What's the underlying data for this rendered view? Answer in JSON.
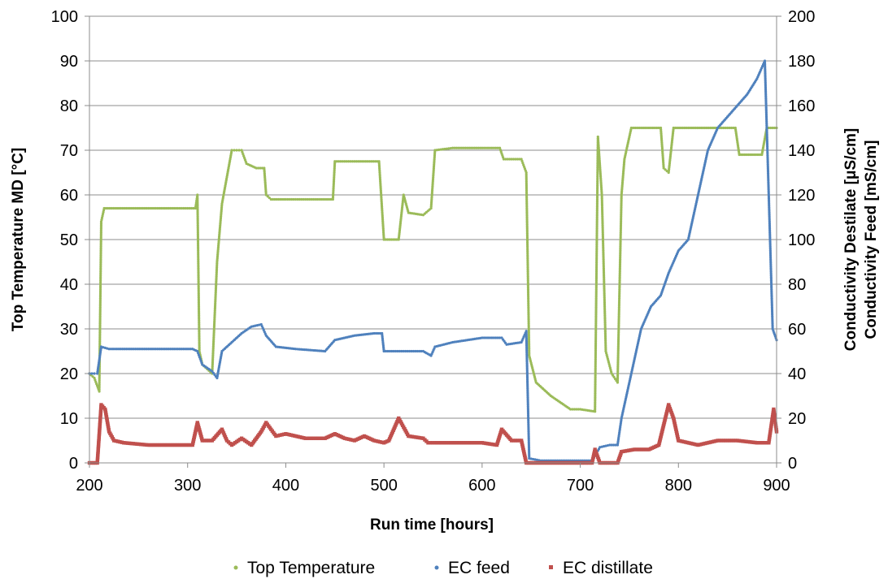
{
  "chart_data": {
    "type": "scatter",
    "xlabel": "Run time [hours]",
    "ylabel_left": "Top Temperature MD  [°C]",
    "ylabel_right_1": "Conductivity Destilate [μS/cm]",
    "ylabel_right_2": "Conductivity Feed [mS/cm]",
    "xlim": [
      200,
      900
    ],
    "ylim_left": [
      0,
      100
    ],
    "ylim_right": [
      0,
      200
    ],
    "x_ticks": [
      200,
      300,
      400,
      500,
      600,
      700,
      800,
      900
    ],
    "y_left_ticks": [
      0,
      10,
      20,
      30,
      40,
      50,
      60,
      70,
      80,
      90,
      100
    ],
    "y_right_ticks": [
      0,
      20,
      40,
      60,
      80,
      100,
      120,
      140,
      160,
      180,
      200
    ],
    "grid": true,
    "legend_position": "bottom",
    "series": [
      {
        "name": "Top Temperature",
        "axis": "left",
        "color": "#9BBB59",
        "marker": "dot",
        "points": [
          [
            200,
            20
          ],
          [
            205,
            19
          ],
          [
            210,
            16
          ],
          [
            212,
            54
          ],
          [
            215,
            57
          ],
          [
            230,
            57
          ],
          [
            260,
            57
          ],
          [
            290,
            57
          ],
          [
            308,
            57
          ],
          [
            310,
            60
          ],
          [
            312,
            25
          ],
          [
            315,
            22
          ],
          [
            320,
            21
          ],
          [
            325,
            20
          ],
          [
            330,
            45
          ],
          [
            335,
            58
          ],
          [
            345,
            70
          ],
          [
            350,
            70
          ],
          [
            355,
            70
          ],
          [
            360,
            67
          ],
          [
            370,
            66
          ],
          [
            378,
            66
          ],
          [
            380,
            60
          ],
          [
            385,
            59
          ],
          [
            400,
            59
          ],
          [
            420,
            59
          ],
          [
            440,
            59
          ],
          [
            448,
            59
          ],
          [
            450,
            67.5
          ],
          [
            470,
            67.5
          ],
          [
            495,
            67.5
          ],
          [
            500,
            50
          ],
          [
            515,
            50
          ],
          [
            520,
            60
          ],
          [
            525,
            56
          ],
          [
            540,
            55.5
          ],
          [
            548,
            57
          ],
          [
            552,
            70
          ],
          [
            570,
            70.5
          ],
          [
            600,
            70.5
          ],
          [
            618,
            70.5
          ],
          [
            622,
            68
          ],
          [
            640,
            68
          ],
          [
            645,
            65
          ],
          [
            648,
            24
          ],
          [
            655,
            18
          ],
          [
            670,
            15
          ],
          [
            690,
            12
          ],
          [
            700,
            12
          ],
          [
            715,
            11.5
          ],
          [
            718,
            73
          ],
          [
            722,
            60
          ],
          [
            726,
            25
          ],
          [
            732,
            20
          ],
          [
            738,
            18
          ],
          [
            742,
            60
          ],
          [
            745,
            68
          ],
          [
            752,
            75
          ],
          [
            770,
            75
          ],
          [
            782,
            75
          ],
          [
            785,
            66
          ],
          [
            790,
            65
          ],
          [
            795,
            75
          ],
          [
            810,
            75
          ],
          [
            840,
            75
          ],
          [
            858,
            75
          ],
          [
            862,
            69
          ],
          [
            875,
            69
          ],
          [
            885,
            69
          ],
          [
            890,
            75
          ],
          [
            900,
            75
          ]
        ]
      },
      {
        "name": "EC feed",
        "axis": "right",
        "color": "#4F81BD",
        "marker": "dot",
        "points": [
          [
            200,
            40
          ],
          [
            205,
            40
          ],
          [
            208,
            40
          ],
          [
            212,
            52
          ],
          [
            220,
            51
          ],
          [
            230,
            51
          ],
          [
            260,
            51
          ],
          [
            290,
            51
          ],
          [
            305,
            51
          ],
          [
            310,
            50
          ],
          [
            315,
            44
          ],
          [
            325,
            41
          ],
          [
            330,
            38
          ],
          [
            335,
            50
          ],
          [
            345,
            54
          ],
          [
            355,
            58
          ],
          [
            365,
            61
          ],
          [
            375,
            62
          ],
          [
            380,
            57
          ],
          [
            390,
            52
          ],
          [
            410,
            51
          ],
          [
            440,
            50
          ],
          [
            450,
            55
          ],
          [
            470,
            57
          ],
          [
            490,
            58
          ],
          [
            498,
            58
          ],
          [
            500,
            50
          ],
          [
            520,
            50
          ],
          [
            540,
            50
          ],
          [
            548,
            48
          ],
          [
            552,
            52
          ],
          [
            570,
            54
          ],
          [
            600,
            56
          ],
          [
            620,
            56
          ],
          [
            625,
            53
          ],
          [
            640,
            54
          ],
          [
            645,
            59
          ],
          [
            648,
            2
          ],
          [
            660,
            1
          ],
          [
            690,
            1
          ],
          [
            700,
            1
          ],
          [
            712,
            1
          ],
          [
            720,
            7
          ],
          [
            730,
            8
          ],
          [
            738,
            8
          ],
          [
            742,
            20
          ],
          [
            752,
            40
          ],
          [
            762,
            60
          ],
          [
            772,
            70
          ],
          [
            782,
            75
          ],
          [
            790,
            85
          ],
          [
            800,
            95
          ],
          [
            810,
            100
          ],
          [
            820,
            120
          ],
          [
            830,
            140
          ],
          [
            840,
            150
          ],
          [
            850,
            155
          ],
          [
            860,
            160
          ],
          [
            870,
            165
          ],
          [
            880,
            172
          ],
          [
            888,
            180
          ],
          [
            892,
            120
          ],
          [
            896,
            60
          ],
          [
            900,
            55
          ]
        ]
      },
      {
        "name": "EC distillate",
        "axis": "right",
        "color": "#C0504D",
        "marker": "dot",
        "points": [
          [
            200,
            0
          ],
          [
            208,
            0
          ],
          [
            212,
            26
          ],
          [
            216,
            24
          ],
          [
            220,
            14
          ],
          [
            225,
            10
          ],
          [
            235,
            9
          ],
          [
            260,
            8
          ],
          [
            290,
            8
          ],
          [
            305,
            8
          ],
          [
            310,
            18
          ],
          [
            315,
            10
          ],
          [
            325,
            10
          ],
          [
            335,
            15
          ],
          [
            340,
            10
          ],
          [
            345,
            8
          ],
          [
            355,
            11
          ],
          [
            365,
            8
          ],
          [
            375,
            14
          ],
          [
            380,
            18
          ],
          [
            385,
            15
          ],
          [
            390,
            12
          ],
          [
            400,
            13
          ],
          [
            420,
            11
          ],
          [
            440,
            11
          ],
          [
            450,
            13
          ],
          [
            460,
            11
          ],
          [
            470,
            10
          ],
          [
            480,
            12
          ],
          [
            490,
            10
          ],
          [
            500,
            9
          ],
          [
            505,
            10
          ],
          [
            515,
            20
          ],
          [
            520,
            16
          ],
          [
            525,
            12
          ],
          [
            540,
            11
          ],
          [
            545,
            9
          ],
          [
            552,
            9
          ],
          [
            570,
            9
          ],
          [
            600,
            9
          ],
          [
            615,
            8
          ],
          [
            620,
            15
          ],
          [
            630,
            10
          ],
          [
            640,
            10
          ],
          [
            645,
            0
          ],
          [
            660,
            0
          ],
          [
            700,
            0
          ],
          [
            712,
            0
          ],
          [
            715,
            6
          ],
          [
            720,
            0
          ],
          [
            738,
            0
          ],
          [
            742,
            5
          ],
          [
            755,
            6
          ],
          [
            770,
            6
          ],
          [
            780,
            8
          ],
          [
            790,
            26
          ],
          [
            795,
            20
          ],
          [
            800,
            10
          ],
          [
            820,
            8
          ],
          [
            840,
            10
          ],
          [
            860,
            10
          ],
          [
            880,
            9
          ],
          [
            892,
            9
          ],
          [
            897,
            24
          ],
          [
            900,
            14
          ]
        ]
      }
    ],
    "legend": [
      {
        "label": "Top Temperature",
        "color": "#9BBB59"
      },
      {
        "label": "EC feed",
        "color": "#4F81BD"
      },
      {
        "label": "EC distillate",
        "color": "#C0504D"
      }
    ]
  }
}
